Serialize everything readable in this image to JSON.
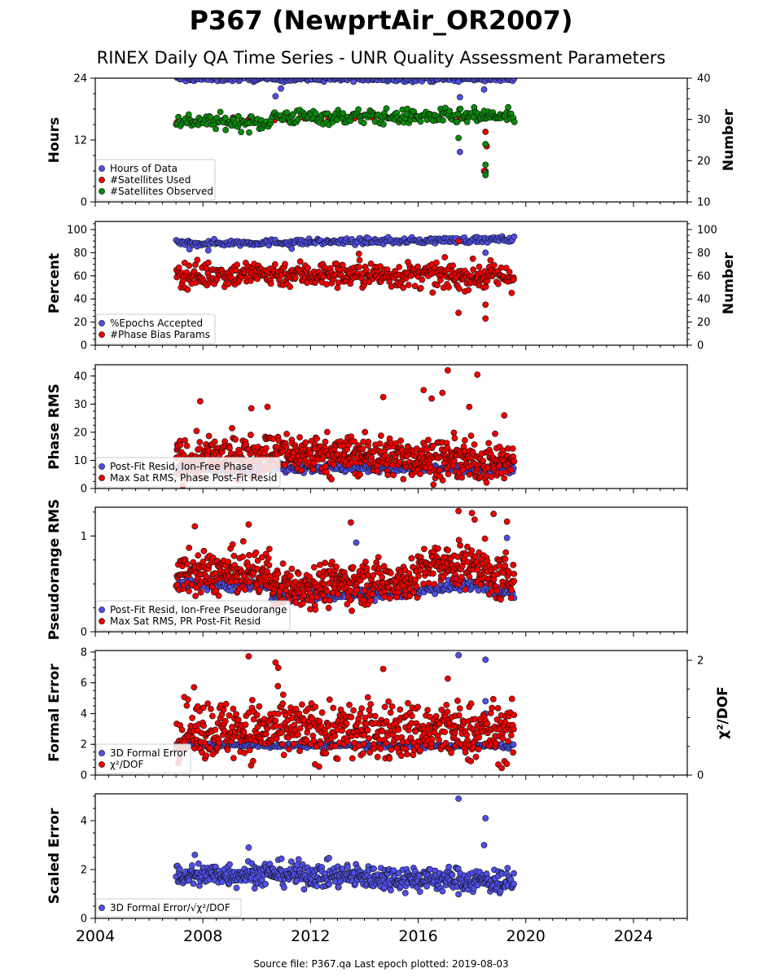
{
  "title": "P367 (NewprtAir_OR2007)",
  "subtitle": "RINEX Daily QA Time Series - UNR Quality Assessment Parameters",
  "footer": "Source file: P367.qa Last epoch plotted: 2019-08-03",
  "colors": {
    "blue": "#4f4fe8",
    "red": "#ee0000",
    "green": "#0a8a0a",
    "edge": "#111111"
  },
  "chart_data": [
    {
      "type": "scatter",
      "ylabel": "Hours",
      "y2label": "Number",
      "xlim": [
        2004,
        2026
      ],
      "ylim": [
        0,
        24
      ],
      "y2lim": [
        10,
        40
      ],
      "xticks": [
        2004,
        2008,
        2012,
        2016,
        2020,
        2024
      ],
      "yticks": [
        0,
        12,
        24
      ],
      "y2ticks": [
        10,
        20,
        30,
        40
      ],
      "legend_position": "lower-left",
      "series": [
        {
          "name": "Hours of Data",
          "color": "blue",
          "axis": "left",
          "gen": {
            "x0": 2007.0,
            "x1": 2019.58,
            "levels": [
              [
                2007.0,
                23.85
              ],
              [
                2019.58,
                23.85
              ]
            ],
            "spread": 0.25,
            "count": 230
          },
          "outliers": [
            [
              2010.7,
              20.5
            ],
            [
              2010.9,
              22.0
            ],
            [
              2013.6,
              23.3
            ],
            [
              2017.5,
              23.3
            ],
            [
              2017.55,
              20.3
            ],
            [
              2017.55,
              9.7
            ],
            [
              2018.45,
              21.8
            ],
            [
              2018.5,
              17.0
            ],
            [
              2018.5,
              6.0
            ]
          ]
        },
        {
          "name": "#Satellites Used",
          "color": "red",
          "axis": "right",
          "gen": {
            "x0": 2007.0,
            "x1": 2019.58,
            "levels": [
              [
                2007.0,
                30.0
              ],
              [
                2019.58,
                30.5
              ]
            ],
            "spread": 0.3,
            "count": 20
          },
          "outliers": [
            [
              2009.7,
              30.0
            ],
            [
              2018.5,
              27.0
            ],
            [
              2018.5,
              24.0
            ],
            [
              2018.55,
              23.5
            ],
            [
              2018.45,
              17.5
            ]
          ]
        },
        {
          "name": "#Satellites Observed",
          "color": "green",
          "axis": "right",
          "gen": {
            "x0": 2007.0,
            "x1": 2019.58,
            "levels": [
              [
                2007.0,
                29.8
              ],
              [
                2009.5,
                29.2
              ],
              [
                2010.3,
                29.0
              ],
              [
                2010.6,
                30.6
              ],
              [
                2019.58,
                30.7
              ]
            ],
            "spread": 0.9,
            "count": 300
          },
          "outliers": [
            [
              2017.5,
              25.5
            ],
            [
              2018.5,
              24.0
            ],
            [
              2018.5,
              19.0
            ],
            [
              2018.5,
              17.0
            ],
            [
              2018.5,
              16.5
            ]
          ]
        }
      ]
    },
    {
      "type": "scatter",
      "ylabel": "Percent",
      "y2label": "Number",
      "xlim": [
        2004,
        2026
      ],
      "ylim": [
        0,
        107
      ],
      "y2lim": [
        0,
        107
      ],
      "xticks": [
        2004,
        2008,
        2012,
        2016,
        2020,
        2024
      ],
      "yticks": [
        0,
        20,
        40,
        60,
        80,
        100
      ],
      "y2ticks": [
        0,
        20,
        40,
        60,
        80,
        100
      ],
      "legend_position": "lower-left",
      "series": [
        {
          "name": "%Epochs Accepted",
          "color": "blue",
          "axis": "left",
          "gen": {
            "x0": 2007.0,
            "x1": 2019.58,
            "levels": [
              [
                2007.0,
                88.0
              ],
              [
                2013.0,
                89.5
              ],
              [
                2019.58,
                91.5
              ]
            ],
            "spread": 1.3,
            "count": 260
          },
          "outliers": [
            [
              2007.5,
              83.0
            ],
            [
              2008.2,
              82.0
            ],
            [
              2011.3,
              83.5
            ],
            [
              2018.5,
              80.0
            ],
            [
              2017.4,
              92.5
            ]
          ]
        },
        {
          "name": "#Phase Bias Params",
          "color": "red",
          "axis": "right",
          "gen": {
            "x0": 2007.0,
            "x1": 2019.58,
            "levels": [
              [
                2007.0,
                61.0
              ],
              [
                2010.5,
                62.0
              ],
              [
                2019.58,
                59.0
              ]
            ],
            "spread": 5.5,
            "count": 450
          },
          "outliers": [
            [
              2017.5,
              28.0
            ],
            [
              2017.5,
              90.0
            ],
            [
              2018.5,
              35.0
            ],
            [
              2018.5,
              23.0
            ],
            [
              2013.8,
              79.0
            ]
          ]
        }
      ]
    },
    {
      "type": "scatter",
      "ylabel": "Phase RMS",
      "xlim": [
        2004,
        2026
      ],
      "ylim": [
        0,
        44
      ],
      "xticks": [
        2004,
        2008,
        2012,
        2016,
        2020,
        2024
      ],
      "yticks": [
        0,
        10,
        20,
        30,
        40
      ],
      "legend_position": "lower-left",
      "series": [
        {
          "name": "Post-Fit Resid, Ion-Free Phase",
          "color": "blue",
          "axis": "left",
          "gen": {
            "x0": 2007.0,
            "x1": 2019.58,
            "levels": [
              [
                2007.0,
                6.5
              ],
              [
                2010.5,
                7.5
              ],
              [
                2019.58,
                6.8
              ]
            ],
            "spread": 0.8,
            "count": 280
          },
          "outliers": []
        },
        {
          "name": "Max Sat RMS, Phase Post-Fit Resid",
          "color": "red",
          "axis": "left",
          "gen": {
            "x0": 2007.0,
            "x1": 2019.58,
            "levels": [
              [
                2007.0,
                10.0
              ],
              [
                2010.5,
                12.5
              ],
              [
                2014.0,
                12.0
              ],
              [
                2019.58,
                9.0
              ]
            ],
            "spread": 3.5,
            "count": 650
          },
          "outliers": [
            [
              2007.9,
              31.0
            ],
            [
              2009.8,
              28.5
            ],
            [
              2010.4,
              29.0
            ],
            [
              2014.7,
              32.5
            ],
            [
              2016.2,
              35.0
            ],
            [
              2016.5,
              32.0
            ],
            [
              2016.9,
              34.0
            ],
            [
              2017.1,
              42.0
            ],
            [
              2017.9,
              29.0
            ],
            [
              2018.2,
              40.5
            ],
            [
              2019.2,
              26.0
            ]
          ]
        }
      ]
    },
    {
      "type": "scatter",
      "ylabel": "Pseudorange RMS",
      "xlim": [
        2004,
        2026
      ],
      "ylim": [
        0,
        1.3
      ],
      "xticks": [
        2004,
        2008,
        2012,
        2016,
        2020,
        2024
      ],
      "yticks": [
        0,
        1
      ],
      "legend_position": "lower-left",
      "series": [
        {
          "name": "Post-Fit Resid, Ion-Free Pseudorange",
          "color": "blue",
          "axis": "left",
          "gen": {
            "x0": 2007.0,
            "x1": 2019.58,
            "levels": [
              [
                2007.0,
                0.5
              ],
              [
                2010.5,
                0.49
              ],
              [
                2010.55,
                0.37
              ],
              [
                2016.0,
                0.4
              ],
              [
                2016.1,
                0.44
              ],
              [
                2018.5,
                0.5
              ],
              [
                2018.6,
                0.41
              ],
              [
                2019.58,
                0.42
              ]
            ],
            "spread": 0.03,
            "count": 300
          },
          "outliers": [
            [
              2013.7,
              0.93
            ],
            [
              2019.3,
              0.98
            ]
          ]
        },
        {
          "name": "Max Sat RMS, PR Post-Fit Resid",
          "color": "red",
          "axis": "left",
          "gen": {
            "x0": 2007.0,
            "x1": 2019.58,
            "levels": [
              [
                2007.0,
                0.6
              ],
              [
                2010.5,
                0.62
              ],
              [
                2010.55,
                0.47
              ],
              [
                2016.0,
                0.55
              ],
              [
                2016.1,
                0.68
              ],
              [
                2018.5,
                0.7
              ],
              [
                2018.6,
                0.52
              ],
              [
                2019.58,
                0.6
              ]
            ],
            "spread": 0.11,
            "count": 650
          },
          "outliers": [
            [
              2007.7,
              1.1
            ],
            [
              2009.7,
              1.12
            ],
            [
              2013.5,
              1.14
            ],
            [
              2017.5,
              1.26
            ],
            [
              2018.0,
              1.24
            ],
            [
              2018.1,
              1.17
            ],
            [
              2018.8,
              1.23
            ],
            [
              2019.3,
              1.15
            ]
          ]
        }
      ]
    },
    {
      "type": "scatter",
      "ylabel": "Formal Error",
      "y2label": "χ²/DOF",
      "xlim": [
        2004,
        2026
      ],
      "ylim": [
        0,
        8.1
      ],
      "y2lim": [
        0,
        2.17
      ],
      "xticks": [
        2004,
        2008,
        2012,
        2016,
        2020,
        2024
      ],
      "yticks": [
        0,
        2,
        4,
        6,
        8
      ],
      "y2ticks": [
        0,
        2
      ],
      "legend_position": "lower-left",
      "series": [
        {
          "name": "3D Formal Error",
          "color": "blue",
          "axis": "left",
          "gen": {
            "x0": 2007.0,
            "x1": 2019.58,
            "levels": [
              [
                2007.0,
                1.95
              ],
              [
                2019.58,
                1.9
              ]
            ],
            "spread": 0.08,
            "count": 260
          },
          "outliers": [
            [
              2017.5,
              7.8
            ],
            [
              2018.5,
              7.5
            ],
            [
              2018.5,
              4.8
            ],
            [
              2018.5,
              4.0
            ]
          ]
        },
        {
          "name": "χ²/DOF",
          "color": "red",
          "axis": "right",
          "gen": {
            "x0": 2007.0,
            "x1": 2019.58,
            "levels": [
              [
                2007.0,
                0.8
              ],
              [
                2019.58,
                0.75
              ]
            ],
            "spread": 0.25,
            "count": 600
          },
          "outliers": [
            [
              2009.7,
              2.07
            ],
            [
              2010.7,
              1.96
            ],
            [
              2010.8,
              1.87
            ],
            [
              2014.7,
              1.85
            ],
            [
              2017.1,
              1.68
            ]
          ]
        }
      ]
    },
    {
      "type": "scatter",
      "ylabel": "Scaled Error",
      "xlim": [
        2004,
        2026
      ],
      "ylim": [
        0,
        5.1
      ],
      "xticks": [
        2004,
        2008,
        2012,
        2016,
        2020,
        2024
      ],
      "yticks": [
        0,
        2,
        4
      ],
      "legend_position": "lower-left",
      "series": [
        {
          "name": "3D Formal Error/√χ²/DOF",
          "color": "blue",
          "axis": "left",
          "gen": {
            "x0": 2007.0,
            "x1": 2019.58,
            "levels": [
              [
                2007.0,
                1.75
              ],
              [
                2010.5,
                1.85
              ],
              [
                2014.0,
                1.7
              ],
              [
                2019.58,
                1.5
              ]
            ],
            "spread": 0.25,
            "count": 550
          },
          "outliers": [
            [
              2009.7,
              2.9
            ],
            [
              2017.5,
              4.9
            ],
            [
              2018.5,
              4.1
            ],
            [
              2018.45,
              3.0
            ],
            [
              2007.7,
              2.6
            ]
          ]
        }
      ]
    }
  ]
}
